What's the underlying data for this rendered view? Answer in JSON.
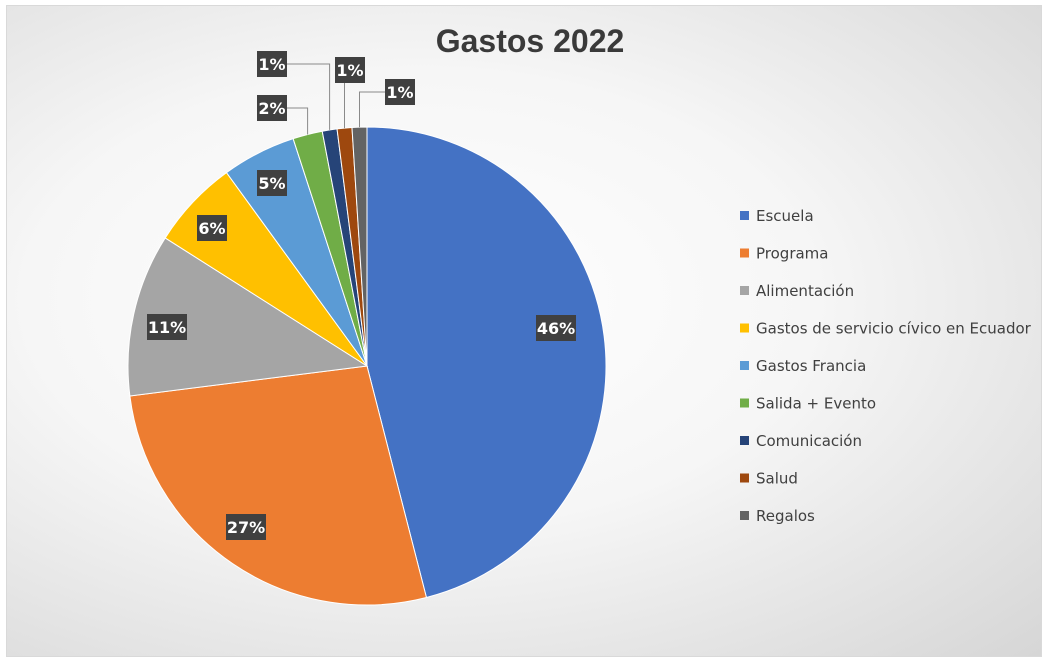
{
  "chart_data": {
    "type": "pie",
    "title": "Gastos 2022",
    "categories": [
      "Escuela",
      "Programa",
      "Alimentación",
      "Gastos de servicio cívico en Ecuador",
      "Gastos Francia",
      "Salida + Evento",
      "Comunicación",
      "Salud",
      "Regalos"
    ],
    "values": [
      46,
      27,
      11,
      6,
      5,
      2,
      1,
      1,
      1
    ],
    "labels": [
      "46%",
      "27%",
      "11%",
      "6%",
      "5%",
      "2%",
      "1%",
      "1%",
      "1%"
    ],
    "colors": [
      "#4472C4",
      "#ED7D31",
      "#A5A5A5",
      "#FFC000",
      "#5B9BD5",
      "#70AD47",
      "#264478",
      "#9E480E",
      "#636363"
    ],
    "legend_position": "right",
    "start_angle": "12 o'clock",
    "direction": "clockwise"
  }
}
